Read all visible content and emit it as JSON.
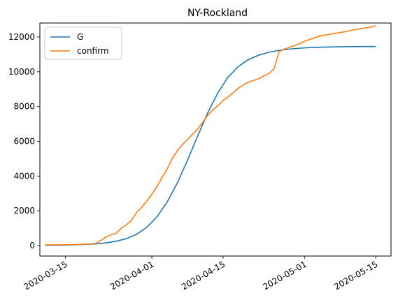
{
  "chart_data": {
    "type": "line",
    "title": "NY-Rockland",
    "xlabel": "",
    "ylabel": "",
    "x_axis": "date",
    "xlim": [
      "2020-03-10",
      "2020-05-18"
    ],
    "ylim": [
      -600,
      12800
    ],
    "x_ticks": [
      "2020-03-15",
      "2020-04-01",
      "2020-04-15",
      "2020-05-01",
      "2020-05-15"
    ],
    "y_ticks": [
      0,
      2000,
      4000,
      6000,
      8000,
      10000,
      12000
    ],
    "grid": false,
    "legend_position": "top-left",
    "series": [
      {
        "name": "G",
        "color": "#1f77b4",
        "points": [
          [
            "2020-03-11",
            20
          ],
          [
            "2020-03-13",
            25
          ],
          [
            "2020-03-15",
            35
          ],
          [
            "2020-03-17",
            50
          ],
          [
            "2020-03-19",
            70
          ],
          [
            "2020-03-21",
            100
          ],
          [
            "2020-03-23",
            160
          ],
          [
            "2020-03-25",
            250
          ],
          [
            "2020-03-27",
            400
          ],
          [
            "2020-03-29",
            650
          ],
          [
            "2020-03-31",
            1050
          ],
          [
            "2020-04-02",
            1650
          ],
          [
            "2020-04-04",
            2500
          ],
          [
            "2020-04-06",
            3600
          ],
          [
            "2020-04-08",
            4900
          ],
          [
            "2020-04-10",
            6300
          ],
          [
            "2020-04-12",
            7650
          ],
          [
            "2020-04-14",
            8800
          ],
          [
            "2020-04-16",
            9700
          ],
          [
            "2020-04-18",
            10300
          ],
          [
            "2020-04-20",
            10700
          ],
          [
            "2020-04-22",
            10950
          ],
          [
            "2020-04-24",
            11120
          ],
          [
            "2020-04-26",
            11230
          ],
          [
            "2020-04-28",
            11300
          ],
          [
            "2020-04-30",
            11350
          ],
          [
            "2020-05-02",
            11390
          ],
          [
            "2020-05-04",
            11410
          ],
          [
            "2020-05-06",
            11425
          ],
          [
            "2020-05-08",
            11435
          ],
          [
            "2020-05-10",
            11442
          ],
          [
            "2020-05-12",
            11447
          ],
          [
            "2020-05-15",
            11450
          ]
        ]
      },
      {
        "name": "confirm",
        "color": "#ff7f0e",
        "points": [
          [
            "2020-03-11",
            40
          ],
          [
            "2020-03-13",
            45
          ],
          [
            "2020-03-15",
            50
          ],
          [
            "2020-03-17",
            60
          ],
          [
            "2020-03-19",
            80
          ],
          [
            "2020-03-21",
            120
          ],
          [
            "2020-03-22",
            300
          ],
          [
            "2020-03-23",
            500
          ],
          [
            "2020-03-24",
            620
          ],
          [
            "2020-03-25",
            700
          ],
          [
            "2020-03-26",
            1000
          ],
          [
            "2020-03-27",
            1200
          ],
          [
            "2020-03-28",
            1450
          ],
          [
            "2020-03-29",
            1900
          ],
          [
            "2020-03-30",
            2200
          ],
          [
            "2020-03-31",
            2550
          ],
          [
            "2020-04-01",
            2950
          ],
          [
            "2020-04-02",
            3400
          ],
          [
            "2020-04-03",
            3900
          ],
          [
            "2020-04-04",
            4400
          ],
          [
            "2020-04-05",
            5000
          ],
          [
            "2020-04-06",
            5450
          ],
          [
            "2020-04-07",
            5800
          ],
          [
            "2020-04-08",
            6100
          ],
          [
            "2020-04-09",
            6400
          ],
          [
            "2020-04-10",
            6700
          ],
          [
            "2020-04-11",
            7100
          ],
          [
            "2020-04-12",
            7500
          ],
          [
            "2020-04-13",
            7800
          ],
          [
            "2020-04-14",
            8050
          ],
          [
            "2020-04-15",
            8350
          ],
          [
            "2020-04-16",
            8550
          ],
          [
            "2020-04-17",
            8800
          ],
          [
            "2020-04-18",
            9050
          ],
          [
            "2020-04-19",
            9250
          ],
          [
            "2020-04-20",
            9400
          ],
          [
            "2020-04-21",
            9500
          ],
          [
            "2020-04-22",
            9600
          ],
          [
            "2020-04-23",
            9750
          ],
          [
            "2020-04-24",
            9900
          ],
          [
            "2020-04-25",
            10150
          ],
          [
            "2020-04-26",
            11150
          ],
          [
            "2020-04-27",
            11300
          ],
          [
            "2020-04-28",
            11400
          ],
          [
            "2020-04-29",
            11500
          ],
          [
            "2020-04-30",
            11600
          ],
          [
            "2020-05-01",
            11750
          ],
          [
            "2020-05-02",
            11850
          ],
          [
            "2020-05-03",
            11950
          ],
          [
            "2020-05-04",
            12050
          ],
          [
            "2020-05-05",
            12100
          ],
          [
            "2020-05-06",
            12150
          ],
          [
            "2020-05-07",
            12200
          ],
          [
            "2020-05-08",
            12250
          ],
          [
            "2020-05-09",
            12300
          ],
          [
            "2020-05-10",
            12370
          ],
          [
            "2020-05-11",
            12420
          ],
          [
            "2020-05-12",
            12480
          ],
          [
            "2020-05-13",
            12520
          ],
          [
            "2020-05-14",
            12560
          ],
          [
            "2020-05-15",
            12650
          ]
        ]
      }
    ]
  }
}
